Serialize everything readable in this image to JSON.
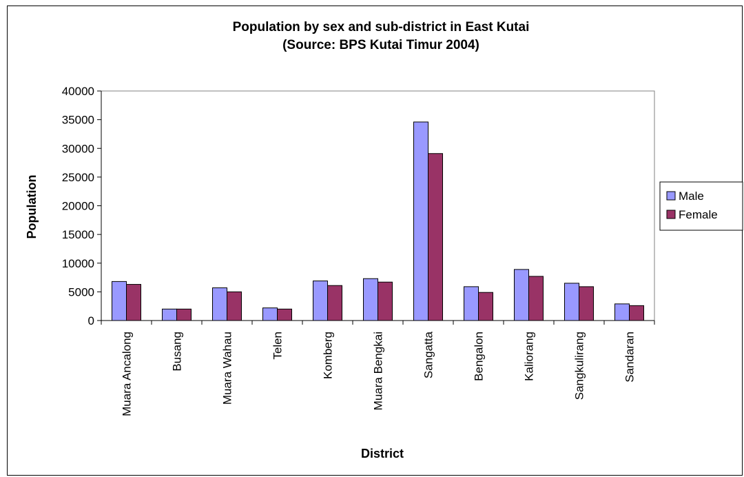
{
  "chart_data": {
    "type": "bar",
    "title": "Population by sex and sub-district in East Kutai",
    "subtitle": "(Source: BPS Kutai Timur 2004)",
    "xlabel": "District",
    "ylabel": "Population",
    "ylim": [
      0,
      40000
    ],
    "yticks": [
      "0",
      "5000",
      "10000",
      "15000",
      "20000",
      "25000",
      "30000",
      "35000",
      "40000"
    ],
    "grid": false,
    "legend_position": "right",
    "categories": [
      "Muara Ancalong",
      "Busang",
      "Muara Wahau",
      "Telen",
      "Komberg",
      "Muara Bengkai",
      "Sangatta",
      "Bengalon",
      "Kaliorang",
      "Sangkulirang",
      "Sandaran"
    ],
    "series": [
      {
        "name": "Male",
        "color": "#9999ff",
        "values": [
          6800,
          2000,
          5700,
          2200,
          6900,
          7300,
          34600,
          5900,
          8900,
          6500,
          2900
        ]
      },
      {
        "name": "Female",
        "color": "#993366",
        "values": [
          6300,
          2000,
          5000,
          2000,
          6100,
          6700,
          29100,
          4900,
          7700,
          5900,
          2600
        ]
      }
    ]
  }
}
